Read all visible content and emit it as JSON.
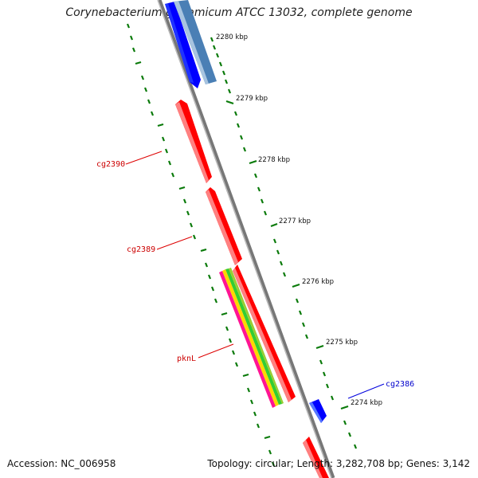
{
  "title": "Corynebacterium glutamicum ATCC 13032, complete genome",
  "footer": {
    "accession": "Accession: NC_006958",
    "topology": "Topology: circular; Length: 3,282,708 bp; Genes: 3,142"
  },
  "scale_labels": [
    "2280 kbp",
    "2279 kbp",
    "2278 kbp",
    "2277 kbp",
    "2276 kbp",
    "2275 kbp",
    "2274 kbp"
  ],
  "gene_labels": [
    {
      "name": "cg2390",
      "color": "#cc0000"
    },
    {
      "name": "cg2389",
      "color": "#cc0000"
    },
    {
      "name": "pknL",
      "color": "#cc0000"
    },
    {
      "name": "cg2386",
      "color": "#0000cc"
    }
  ],
  "colors": {
    "forward_gene": "#ff0000",
    "reverse_gene": "#0000ff",
    "rna_gene": "#4682b4",
    "backbone": "#808080",
    "tick": "#006400"
  }
}
